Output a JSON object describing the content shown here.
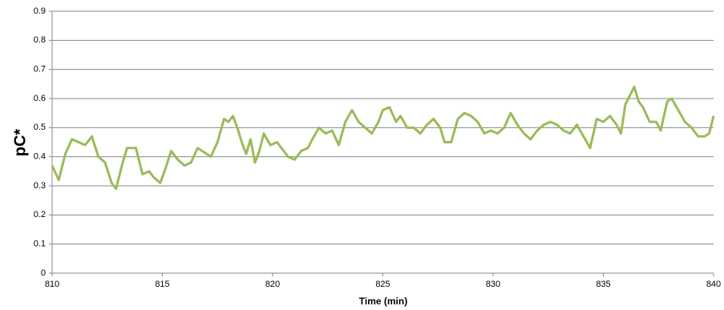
{
  "chart_data": {
    "type": "line",
    "xlabel": "Time (min)",
    "ylabel": "pC*",
    "x": [
      810.0,
      810.3,
      810.6,
      810.9,
      811.2,
      811.5,
      811.8,
      812.1,
      812.4,
      812.7,
      812.9,
      813.2,
      813.4,
      813.8,
      814.1,
      814.4,
      814.6,
      814.9,
      815.1,
      815.4,
      815.7,
      816.0,
      816.3,
      816.6,
      817.0,
      817.2,
      817.5,
      817.8,
      818.0,
      818.2,
      818.4,
      818.6,
      818.8,
      819.0,
      819.2,
      819.4,
      819.6,
      819.9,
      820.2,
      820.5,
      820.7,
      821.0,
      821.3,
      821.6,
      821.8,
      822.1,
      822.4,
      822.7,
      823.0,
      823.3,
      823.6,
      823.9,
      824.2,
      824.5,
      824.8,
      825.0,
      825.3,
      825.6,
      825.8,
      826.1,
      826.4,
      826.7,
      827.0,
      827.3,
      827.6,
      827.8,
      828.1,
      828.4,
      828.7,
      829.0,
      829.3,
      829.6,
      829.9,
      830.2,
      830.5,
      830.8,
      831.1,
      831.4,
      831.7,
      832.0,
      832.3,
      832.6,
      832.9,
      833.2,
      833.5,
      833.8,
      834.1,
      834.4,
      834.7,
      835.0,
      835.3,
      835.6,
      835.8,
      836.0,
      836.2,
      836.4,
      836.6,
      836.8,
      837.1,
      837.4,
      837.6,
      837.9,
      838.1,
      838.4,
      838.7,
      839.0,
      839.3,
      839.6,
      839.8,
      840.0
    ],
    "series": [
      {
        "name": "pC*",
        "color": "#9bbb59",
        "values": [
          0.37,
          0.32,
          0.41,
          0.46,
          0.45,
          0.44,
          0.47,
          0.4,
          0.38,
          0.31,
          0.29,
          0.38,
          0.43,
          0.43,
          0.34,
          0.35,
          0.33,
          0.31,
          0.35,
          0.42,
          0.39,
          0.37,
          0.38,
          0.43,
          0.41,
          0.4,
          0.45,
          0.53,
          0.52,
          0.54,
          0.5,
          0.45,
          0.41,
          0.46,
          0.38,
          0.42,
          0.48,
          0.44,
          0.45,
          0.42,
          0.4,
          0.39,
          0.42,
          0.43,
          0.46,
          0.5,
          0.48,
          0.49,
          0.44,
          0.52,
          0.56,
          0.52,
          0.5,
          0.48,
          0.52,
          0.56,
          0.57,
          0.52,
          0.54,
          0.5,
          0.5,
          0.48,
          0.51,
          0.53,
          0.5,
          0.45,
          0.45,
          0.53,
          0.55,
          0.54,
          0.52,
          0.48,
          0.49,
          0.48,
          0.5,
          0.55,
          0.51,
          0.48,
          0.46,
          0.49,
          0.51,
          0.52,
          0.51,
          0.49,
          0.48,
          0.51,
          0.47,
          0.43,
          0.53,
          0.52,
          0.54,
          0.51,
          0.48,
          0.58,
          0.61,
          0.64,
          0.59,
          0.57,
          0.52,
          0.52,
          0.49,
          0.59,
          0.6,
          0.56,
          0.52,
          0.5,
          0.47,
          0.47,
          0.48,
          0.54
        ]
      }
    ],
    "xlim": [
      810,
      840
    ],
    "xticks": [
      810,
      815,
      820,
      825,
      830,
      835,
      840
    ],
    "ylim": [
      0,
      0.9
    ],
    "yticks": [
      0,
      0.1,
      0.2,
      0.3,
      0.4,
      0.5,
      0.6,
      0.7,
      0.8,
      0.9
    ],
    "grid": true
  }
}
